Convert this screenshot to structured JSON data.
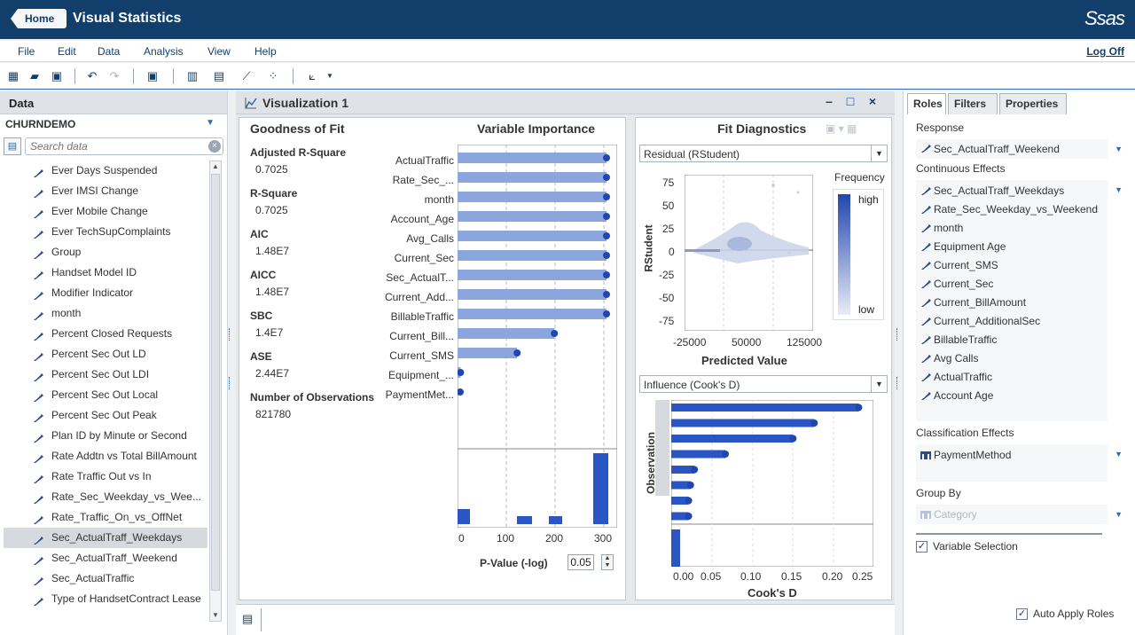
{
  "app": {
    "home_label": "Home",
    "title": "Visual Statistics",
    "logo_text": "Ssas"
  },
  "menu": {
    "items": [
      "File",
      "Edit",
      "Data",
      "Analysis",
      "View",
      "Help"
    ],
    "logoff": "Log Off"
  },
  "toolbar": {
    "icons": [
      "new-icon",
      "open-icon",
      "save-icon",
      "undo-icon",
      "redo-icon",
      "fit-icon",
      "bar-chart-icon",
      "box-plot-icon",
      "line-chart-icon",
      "scatter-icon",
      "model-icon"
    ]
  },
  "data_pane": {
    "title": "Data",
    "source": "CHURNDEMO",
    "search_placeholder": "Search data",
    "variables": [
      "Ever Days Suspended",
      "Ever IMSI Change",
      "Ever Mobile Change",
      "Ever TechSupComplaints",
      "Group",
      "Handset Model ID",
      "Modifier Indicator",
      "month",
      "Percent Closed Requests",
      "Percent Sec Out LD",
      "Percent Sec Out LDI",
      "Percent Sec Out Local",
      "Percent Sec Out Peak",
      "Plan ID by Minute or Second",
      "Rate Addtn vs Total BillAmount",
      "Rate Traffic Out vs In",
      "Rate_Sec_Weekday_vs_Wee...",
      "Rate_Traffic_On_vs_OffNet",
      "Sec_ActualTraff_Weekdays",
      "Sec_ActualTraff_Weekend",
      "Sec_ActualTraffic",
      "Type of HandsetContract Lease"
    ],
    "selected_index": 18
  },
  "viz": {
    "title": "Visualization 1",
    "gof": {
      "title": "Goodness of Fit",
      "stats": [
        {
          "label": "Adjusted R-Square",
          "value": "0.7025"
        },
        {
          "label": "R-Square",
          "value": "0.7025"
        },
        {
          "label": "AIC",
          "value": "1.48E7"
        },
        {
          "label": "AICC",
          "value": "1.48E7"
        },
        {
          "label": "SBC",
          "value": "1.4E7"
        },
        {
          "label": "ASE",
          "value": "2.44E7"
        },
        {
          "label": "Number of Observations",
          "value": "821780"
        }
      ]
    },
    "vi": {
      "title": "Variable Importance",
      "labels": [
        "ActualTraffic",
        "Rate_Sec_...",
        "month",
        "Account_Age",
        "Avg_Calls",
        "Current_Sec",
        "Sec_ActualT...",
        "Current_Add...",
        "BillableTraffic",
        "Current_Bill...",
        "Current_SMS",
        "Equipment_...",
        "PaymentMet..."
      ],
      "xticks": [
        "0",
        "100",
        "200",
        "300"
      ],
      "pvalue_label": "P-Value (-log)",
      "pvalue": "0.05"
    },
    "fit": {
      "title": "Fit Diagnostics",
      "top_select": "Residual (RStudent)",
      "y_title": "RStudent",
      "x_title": "Predicted Value",
      "yticks": [
        "75",
        "50",
        "25",
        "0",
        "-25",
        "-50",
        "-75"
      ],
      "xticks": [
        "-25000",
        "50000",
        "125000"
      ],
      "freq_title": "Frequency",
      "freq_high": "high",
      "freq_low": "low",
      "bottom_select": "Influence (Cook's D)",
      "obs_title": "Observation",
      "cook_title": "Cook's D",
      "cook_ticks": [
        "0.00",
        "0.05",
        "0.10",
        "0.15",
        "0.20",
        "0.25"
      ]
    }
  },
  "roles": {
    "tabs": [
      "Roles",
      "Filters",
      "Properties"
    ],
    "response_label": "Response",
    "response": "Sec_ActualTraff_Weekend",
    "continuous_label": "Continuous Effects",
    "continuous": [
      "Sec_ActualTraff_Weekdays",
      "Rate_Sec_Weekday_vs_Weekend",
      "month",
      "Equipment Age",
      "Current_SMS",
      "Current_Sec",
      "Current_BillAmount",
      "Current_AdditionalSec",
      "BillableTraffic",
      "Avg Calls",
      "ActualTraffic",
      "Account Age"
    ],
    "classification_label": "Classification Effects",
    "classification": "PaymentMethod",
    "groupby_label": "Group By",
    "groupby_placeholder": "Category",
    "variable_selection": "Variable Selection",
    "auto_apply": "Auto Apply Roles"
  },
  "colors": {
    "banner": "#123e6c",
    "bar": "#8aa6dc",
    "bar_end": "#2146b0",
    "cook_bar": "#2a55c4"
  }
}
